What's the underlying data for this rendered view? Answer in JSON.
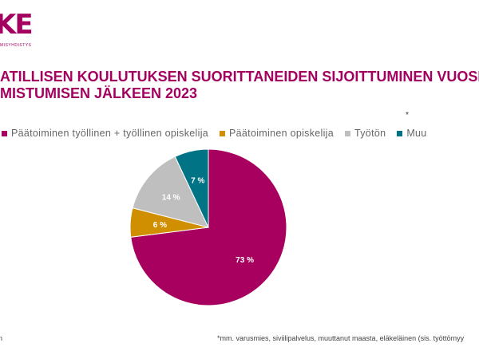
{
  "logo": {
    "text": "KE",
    "tagline": "MISYHDISTYS"
  },
  "title_lines": [
    "ATILLISEN KOULUTUKSEN SUORITTANEIDEN SIJOITTUMINEN VUOSI",
    "MISTUMISEN JÄLKEEN 2023"
  ],
  "asterisk": "*",
  "footnote_left": "n",
  "footnote": "*mm. varusmies, siviilipalvelus, muuttanut maasta, eläkeläinen (sis. työttömyy",
  "chart_data": {
    "type": "pie",
    "start": "top",
    "direction": "clockwise",
    "legend_position": "top",
    "series": [
      {
        "name": "Päätoiminen työllinen + työllinen opiskelija",
        "value": 73,
        "label": "73 %",
        "color": "#a8005e"
      },
      {
        "name": "Päätoiminen opiskelija",
        "value": 6,
        "label": "6 %",
        "color": "#d08f00"
      },
      {
        "name": "Työtön",
        "value": 14,
        "label": "14 %",
        "color": "#bfbfbf"
      },
      {
        "name": "Muu",
        "value": 7,
        "label": "7 %",
        "color": "#007485"
      }
    ]
  }
}
